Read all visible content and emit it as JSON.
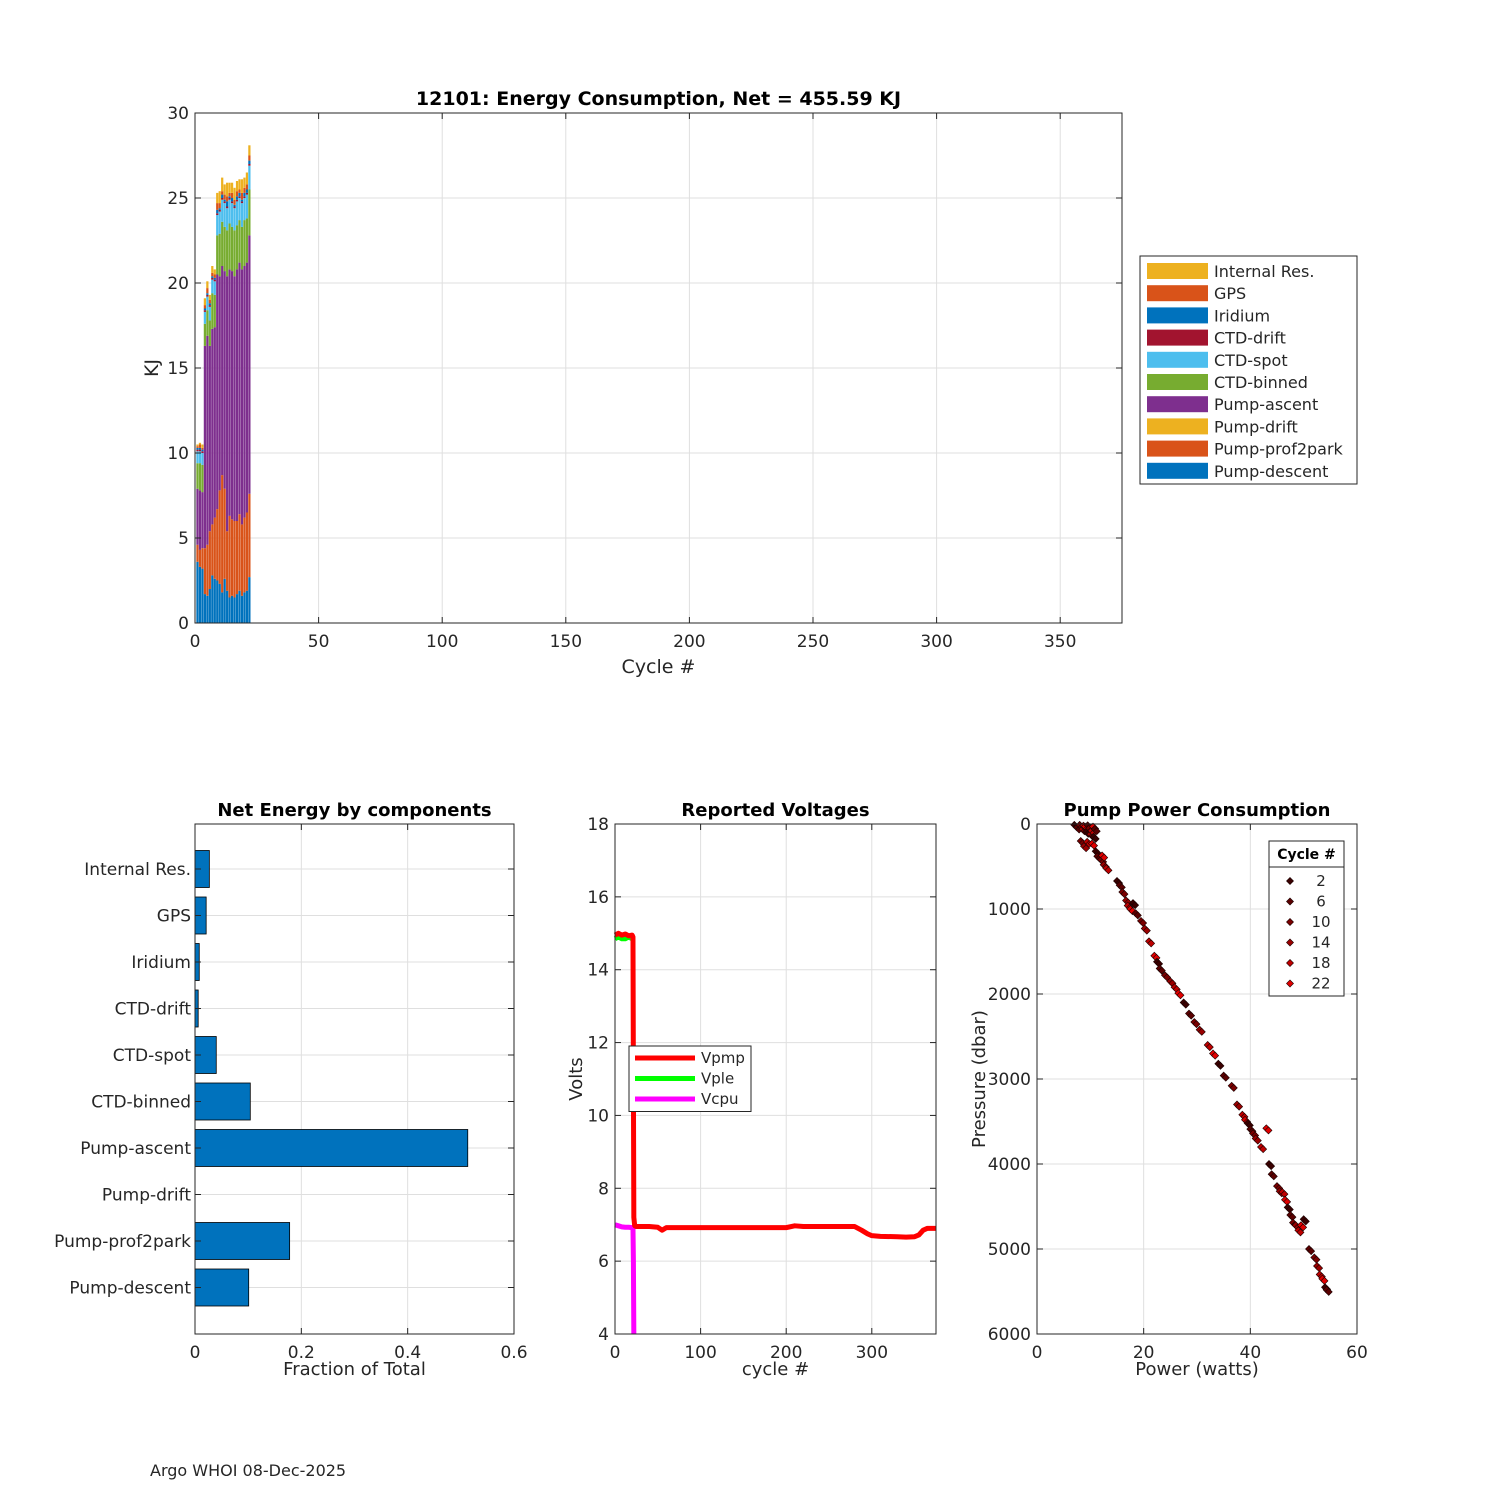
{
  "footer": "Argo WHOI 08-Dec-2025",
  "chart_data": [
    {
      "type": "bar",
      "stacked": true,
      "title": "12101: Energy Consumption,  Net = 455.59 KJ",
      "xlabel": "Cycle #",
      "ylabel": "KJ",
      "xlim": [
        0,
        375
      ],
      "ylim": [
        0,
        30
      ],
      "xticks": [
        0,
        50,
        100,
        150,
        200,
        250,
        300,
        350
      ],
      "yticks": [
        0,
        5,
        10,
        15,
        20,
        25,
        30
      ],
      "grid": true,
      "legend_location": "outside-right",
      "cycles": [
        1,
        2,
        3,
        4,
        5,
        6,
        7,
        8,
        9,
        10,
        11,
        12,
        13,
        14,
        15,
        16,
        17,
        18,
        19,
        20,
        21,
        22
      ],
      "series": [
        {
          "name": "Pump-descent",
          "color": "#0072BD",
          "values": [
            3.6,
            3.3,
            3.2,
            1.7,
            1.6,
            2.0,
            2.8,
            2.6,
            2.5,
            2.3,
            1.8,
            2.6,
            1.9,
            1.5,
            1.6,
            1.5,
            1.7,
            1.9,
            1.6,
            1.8,
            1.9,
            2.7
          ]
        },
        {
          "name": "Pump-prof2park",
          "color": "#D95319",
          "values": [
            1.0,
            1.0,
            1.2,
            2.7,
            3.0,
            3.4,
            3.0,
            3.6,
            4.2,
            5.5,
            6.9,
            5.3,
            3.5,
            4.8,
            4.5,
            4.5,
            4.3,
            4.5,
            4.2,
            4.4,
            4.6,
            4.9
          ]
        },
        {
          "name": "Pump-drift",
          "color": "#EDB120",
          "values": [
            0,
            0,
            0,
            0,
            0,
            0,
            0,
            0,
            0,
            0,
            0,
            0,
            0,
            0,
            0,
            0,
            0,
            0,
            0,
            0,
            0,
            0
          ]
        },
        {
          "name": "Pump-ascent",
          "color": "#7E2F8E",
          "values": [
            3.3,
            3.5,
            3.3,
            11.9,
            12.3,
            10.9,
            11.5,
            11.2,
            13.8,
            12.6,
            12.3,
            12.8,
            15.0,
            14.5,
            14.6,
            14.4,
            14.8,
            14.8,
            15.0,
            14.8,
            14.7,
            15.2
          ]
        },
        {
          "name": "CTD-binned",
          "color": "#77AC30",
          "values": [
            1.5,
            1.6,
            1.6,
            1.3,
            1.5,
            1.5,
            2.1,
            1.9,
            2.3,
            2.5,
            2.6,
            2.6,
            2.7,
            2.7,
            2.6,
            2.7,
            2.6,
            2.5,
            2.5,
            2.7,
            2.6,
            2.7
          ]
        },
        {
          "name": "CTD-spot",
          "color": "#4DBEEE",
          "values": [
            0.7,
            0.7,
            0.7,
            0.7,
            0.8,
            0.8,
            0.8,
            0.8,
            1.2,
            1.3,
            1.3,
            1.4,
            1.3,
            1.4,
            1.4,
            1.3,
            1.4,
            1.3,
            1.4,
            1.3,
            1.4,
            1.4
          ]
        },
        {
          "name": "CTD-drift",
          "color": "#A2142F",
          "values": [
            0.1,
            0.1,
            0.1,
            0.1,
            0.1,
            0.1,
            0.1,
            0.1,
            0.1,
            0.1,
            0.1,
            0.1,
            0.1,
            0.1,
            0.1,
            0.1,
            0.1,
            0.1,
            0.1,
            0.1,
            0.1,
            0.1
          ]
        },
        {
          "name": "Iridium",
          "color": "#0072BD",
          "values": [
            0.1,
            0.1,
            0.1,
            0.1,
            0.1,
            0.1,
            0.1,
            0.1,
            0.2,
            0.1,
            0.2,
            0.1,
            0.3,
            0.1,
            0.2,
            0.1,
            0.2,
            0.2,
            0.1,
            0.2,
            0.2,
            0.2
          ]
        },
        {
          "name": "GPS",
          "color": "#D95319",
          "values": [
            0.1,
            0.2,
            0.1,
            0.2,
            0.3,
            0.2,
            0.2,
            0.2,
            0.4,
            0.3,
            0.2,
            0.3,
            0.3,
            0.2,
            0.3,
            0.3,
            0.3,
            0.2,
            0.4,
            0.3,
            0.3,
            0.3
          ]
        },
        {
          "name": "Internal Res.",
          "color": "#EDB120",
          "values": [
            0.1,
            0.1,
            0.2,
            0.4,
            0.4,
            0.3,
            0.4,
            0.3,
            0.6,
            0.7,
            0.8,
            0.6,
            0.8,
            0.6,
            0.6,
            0.7,
            0.6,
            0.6,
            0.8,
            0.6,
            0.7,
            0.6
          ]
        }
      ]
    },
    {
      "type": "bar",
      "orientation": "horizontal",
      "title": "Net Energy by components",
      "xlabel": "Fraction of Total",
      "xlim": [
        0,
        0.6
      ],
      "xticks": [
        0,
        0.2,
        0.4,
        0.6
      ],
      "xtick_labels": [
        "0",
        "0.2",
        "0.4",
        "0.6"
      ],
      "color": "#0072BD",
      "categories": [
        "Internal Res.",
        "GPS",
        "Iridium",
        "CTD-drift",
        "CTD-spot",
        "CTD-binned",
        "Pump-ascent",
        "Pump-drift",
        "Pump-prof2park",
        "Pump-descent"
      ],
      "values": [
        0.027,
        0.021,
        0.008,
        0.006,
        0.04,
        0.104,
        0.513,
        0.0,
        0.178,
        0.101
      ]
    },
    {
      "type": "line",
      "title": "Reported Voltages",
      "xlabel": "cycle #",
      "ylabel": "Volts",
      "xlim": [
        0,
        375
      ],
      "ylim": [
        4,
        18
      ],
      "xticks": [
        0,
        100,
        200,
        300
      ],
      "yticks": [
        4,
        6,
        8,
        10,
        12,
        14,
        16,
        18
      ],
      "legend_location": "middle-left",
      "series": [
        {
          "name": "Vpmp",
          "color": "#FF0000",
          "x": [
            0,
            4,
            8,
            12,
            16,
            20,
            21,
            21.5,
            22,
            23,
            25,
            30,
            40,
            50,
            55,
            60,
            80,
            100,
            150,
            200,
            210,
            220,
            250,
            280,
            288,
            295,
            300,
            310,
            330,
            340,
            350,
            355,
            360,
            365,
            375
          ],
          "y": [
            14.95,
            15.0,
            14.95,
            14.98,
            14.93,
            14.95,
            14.9,
            11.0,
            7.2,
            6.97,
            6.95,
            6.95,
            6.95,
            6.93,
            6.85,
            6.92,
            6.92,
            6.92,
            6.92,
            6.92,
            6.97,
            6.95,
            6.95,
            6.95,
            6.85,
            6.75,
            6.7,
            6.68,
            6.67,
            6.66,
            6.67,
            6.72,
            6.85,
            6.9,
            6.9
          ]
        },
        {
          "name": "Vple",
          "color": "#00FF00",
          "x": [
            0,
            4,
            8,
            12,
            16,
            20,
            22
          ],
          "y": [
            14.85,
            14.9,
            14.85,
            14.85,
            14.9,
            14.85,
            14.85
          ]
        },
        {
          "name": "Vcpu",
          "color": "#FF00FF",
          "x": [
            0,
            4,
            8,
            12,
            16,
            20,
            21,
            21.5,
            22
          ],
          "y": [
            7.0,
            6.97,
            6.94,
            6.93,
            6.93,
            6.92,
            6.92,
            6.0,
            4.0
          ]
        }
      ]
    },
    {
      "type": "scatter",
      "title": "Pump Power Consumption",
      "xlabel": "Power (watts)",
      "ylabel": "Pressure (dbar)",
      "xlim": [
        0,
        60
      ],
      "ylim": [
        0,
        6000
      ],
      "y_reversed": true,
      "xticks": [
        0,
        20,
        40,
        60
      ],
      "yticks": [
        0,
        1000,
        2000,
        3000,
        4000,
        5000,
        6000
      ],
      "legend_title": "Cycle #",
      "legend_location": "top-right",
      "legend_entries": [
        "2",
        "6",
        "10",
        "14",
        "18",
        "22"
      ],
      "legend_colors": [
        "#3A0000",
        "#5A0000",
        "#7A0000",
        "#9A0000",
        "#BE0000",
        "#E00000"
      ],
      "points": [
        [
          7,
          10
        ],
        [
          7.5,
          40
        ],
        [
          8,
          10
        ],
        [
          8.5,
          60
        ],
        [
          8.7,
          20
        ],
        [
          9,
          30
        ],
        [
          9.2,
          90
        ],
        [
          9.5,
          15
        ],
        [
          9.8,
          50
        ],
        [
          10,
          120
        ],
        [
          10.2,
          80
        ],
        [
          10.5,
          30
        ],
        [
          10.6,
          150
        ],
        [
          10.8,
          60
        ],
        [
          8.2,
          200
        ],
        [
          8.8,
          260
        ],
        [
          9.4,
          210
        ],
        [
          10.3,
          230
        ],
        [
          11,
          320
        ],
        [
          11.3,
          380
        ],
        [
          12,
          420
        ],
        [
          12.5,
          480
        ],
        [
          13,
          520
        ],
        [
          12.2,
          370
        ],
        [
          15,
          670
        ],
        [
          15.5,
          720
        ],
        [
          16,
          800
        ],
        [
          16.7,
          900
        ],
        [
          17,
          960
        ],
        [
          17.5,
          1000
        ],
        [
          18,
          930
        ],
        [
          18.5,
          1050
        ],
        [
          19.5,
          1140
        ],
        [
          20.2,
          1230
        ],
        [
          21,
          1380
        ],
        [
          22,
          1550
        ],
        [
          22.5,
          1620
        ],
        [
          23,
          1700
        ],
        [
          24,
          1780
        ],
        [
          25,
          1850
        ],
        [
          25.8,
          1920
        ],
        [
          26.5,
          1990
        ],
        [
          27.5,
          2100
        ],
        [
          28.5,
          2230
        ],
        [
          29.5,
          2330
        ],
        [
          30.5,
          2420
        ],
        [
          32,
          2600
        ],
        [
          33,
          2700
        ],
        [
          34,
          2820
        ],
        [
          35,
          2960
        ],
        [
          36.5,
          3080
        ],
        [
          37.5,
          3300
        ],
        [
          38.5,
          3420
        ],
        [
          39,
          3480
        ],
        [
          39.5,
          3520
        ],
        [
          40,
          3590
        ],
        [
          40.5,
          3640
        ],
        [
          41,
          3700
        ],
        [
          42,
          3800
        ],
        [
          43,
          3580
        ],
        [
          43.5,
          4000
        ],
        [
          44,
          4120
        ],
        [
          45,
          4260
        ],
        [
          45.5,
          4320
        ],
        [
          46,
          4330
        ],
        [
          46.5,
          4420
        ],
        [
          47,
          4510
        ],
        [
          47.5,
          4600
        ],
        [
          48,
          4690
        ],
        [
          48.5,
          4720
        ],
        [
          49,
          4780
        ],
        [
          49.5,
          4720
        ],
        [
          50,
          4650
        ],
        [
          51,
          5000
        ],
        [
          52,
          5100
        ],
        [
          52.5,
          5200
        ],
        [
          53,
          5300
        ],
        [
          53.5,
          5350
        ],
        [
          54,
          5450
        ],
        [
          54.3,
          5480
        ]
      ]
    }
  ]
}
